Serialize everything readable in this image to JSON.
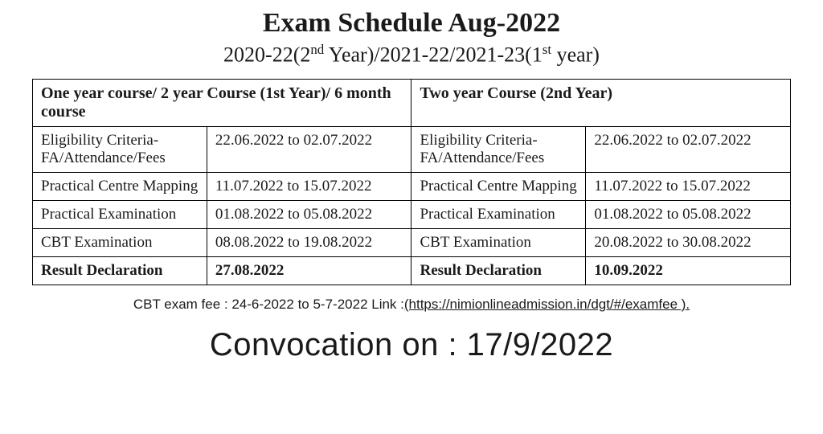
{
  "title": "Exam Schedule Aug-2022",
  "subtitle_parts": [
    "2020-22(2",
    "nd",
    " Year)/2021-22/2021-23(1",
    "st",
    " year)"
  ],
  "table": {
    "headers": {
      "left": "One year course/ 2 year Course (1st Year)/ 6 month course",
      "right": "Two year Course (2nd Year)"
    },
    "rows": [
      {
        "leftLabel": "Eligibility Criteria- FA/Attendance/Fees",
        "leftValue": "22.06.2022 to 02.07.2022",
        "rightLabel": "Eligibility Criteria- FA/Attendance/Fees",
        "rightValue": "22.06.2022 to 02.07.2022",
        "bold": false
      },
      {
        "leftLabel": "Practical Centre Mapping",
        "leftValue": "11.07.2022 to 15.07.2022",
        "rightLabel": "Practical Centre Mapping",
        "rightValue": "11.07.2022 to 15.07.2022",
        "bold": false
      },
      {
        "leftLabel": "Practical Examination",
        "leftValue": "01.08.2022 to 05.08.2022",
        "rightLabel": "Practical Examination",
        "rightValue": "01.08.2022 to 05.08.2022",
        "bold": false
      },
      {
        "leftLabel": "CBT Examination",
        "leftValue": "08.08.2022 to 19.08.2022",
        "rightLabel": "CBT Examination",
        "rightValue": "20.08.2022 to 30.08.2022",
        "bold": false
      },
      {
        "leftLabel": "Result Declaration",
        "leftValue": "27.08.2022",
        "rightLabel": "Result Declaration",
        "rightValue": "10.09.2022",
        "bold": true
      }
    ]
  },
  "footnote": {
    "prefix": "CBT exam fee : 24-6-2022 to 5-7-2022 Link :",
    "link": "(https://nimionlineadmission.in/dgt/#/examfee )."
  },
  "convocation": "Convocation on : 17/9/2022",
  "colors": {
    "background": "#ffffff",
    "text": "#1a1a1a",
    "border": "#000000"
  },
  "typography": {
    "title_fontsize": 34,
    "subtitle_fontsize": 26,
    "cell_fontsize": 19,
    "header_fontsize": 20,
    "footnote_fontsize": 17,
    "convocation_fontsize": 40
  }
}
